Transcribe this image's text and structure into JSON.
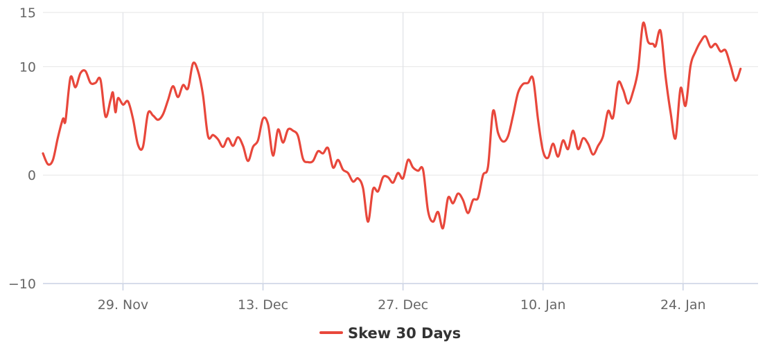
{
  "chart_data": {
    "type": "line",
    "title": "",
    "xlabel": "",
    "ylabel": "",
    "ylim": [
      -10,
      15
    ],
    "y_ticks": [
      15,
      10,
      0,
      -10
    ],
    "y_tick_labels": [
      "15",
      "10",
      "0",
      "−10"
    ],
    "x_ticks": [
      {
        "date": "2023-11-29",
        "label": "29. Nov"
      },
      {
        "date": "2023-12-13",
        "label": "13. Dec"
      },
      {
        "date": "2023-12-27",
        "label": "27. Dec"
      },
      {
        "date": "2024-01-10",
        "label": "10. Jan"
      },
      {
        "date": "2024-01-24",
        "label": "24. Jan"
      }
    ],
    "xlim": [
      "2023-11-21",
      "2024-01-31T12:00"
    ],
    "grid": {
      "x": true,
      "y": true
    },
    "legend": {
      "position": "bottom-center"
    },
    "series": [
      {
        "name": "Skew 30 Days",
        "color": "#e8473b",
        "points": [
          [
            "2023-11-21T00:00",
            2.0
          ],
          [
            "2023-11-21T12:00",
            1.0
          ],
          [
            "2023-11-22T00:00",
            1.4
          ],
          [
            "2023-11-22T12:00",
            3.5
          ],
          [
            "2023-11-23T00:00",
            5.2
          ],
          [
            "2023-11-23T06:00",
            5.0
          ],
          [
            "2023-11-23T18:00",
            9.0
          ],
          [
            "2023-11-24T06:00",
            8.1
          ],
          [
            "2023-11-24T18:00",
            9.4
          ],
          [
            "2023-11-25T06:00",
            9.6
          ],
          [
            "2023-11-25T18:00",
            8.5
          ],
          [
            "2023-11-26T06:00",
            8.5
          ],
          [
            "2023-11-26T18:00",
            8.8
          ],
          [
            "2023-11-27T06:00",
            5.4
          ],
          [
            "2023-11-27T18:00",
            6.9
          ],
          [
            "2023-11-28T00:00",
            7.6
          ],
          [
            "2023-11-28T06:00",
            5.8
          ],
          [
            "2023-11-28T12:00",
            7.1
          ],
          [
            "2023-11-29T00:00",
            6.5
          ],
          [
            "2023-11-29T12:00",
            6.8
          ],
          [
            "2023-11-30T00:00",
            5.2
          ],
          [
            "2023-11-30T12:00",
            2.8
          ],
          [
            "2023-12-01T00:00",
            2.6
          ],
          [
            "2023-12-01T12:00",
            5.7
          ],
          [
            "2023-12-02T00:00",
            5.5
          ],
          [
            "2023-12-02T12:00",
            5.1
          ],
          [
            "2023-12-03T00:00",
            5.6
          ],
          [
            "2023-12-03T12:00",
            6.9
          ],
          [
            "2023-12-04T00:00",
            8.2
          ],
          [
            "2023-12-04T12:00",
            7.2
          ],
          [
            "2023-12-05T00:00",
            8.3
          ],
          [
            "2023-12-05T12:00",
            8.0
          ],
          [
            "2023-12-06T00:00",
            10.3
          ],
          [
            "2023-12-06T12:00",
            9.6
          ],
          [
            "2023-12-07T00:00",
            7.4
          ],
          [
            "2023-12-07T12:00",
            3.6
          ],
          [
            "2023-12-08T00:00",
            3.7
          ],
          [
            "2023-12-08T12:00",
            3.3
          ],
          [
            "2023-12-09T00:00",
            2.6
          ],
          [
            "2023-12-09T12:00",
            3.4
          ],
          [
            "2023-12-10T00:00",
            2.7
          ],
          [
            "2023-12-10T12:00",
            3.5
          ],
          [
            "2023-12-11T00:00",
            2.7
          ],
          [
            "2023-12-11T12:00",
            1.3
          ],
          [
            "2023-12-12T00:00",
            2.6
          ],
          [
            "2023-12-12T12:00",
            3.2
          ],
          [
            "2023-12-13T00:00",
            5.2
          ],
          [
            "2023-12-13T12:00",
            4.7
          ],
          [
            "2023-12-14T00:00",
            1.8
          ],
          [
            "2023-12-14T12:00",
            4.2
          ],
          [
            "2023-12-15T00:00",
            3.0
          ],
          [
            "2023-12-15T12:00",
            4.2
          ],
          [
            "2023-12-16T00:00",
            4.1
          ],
          [
            "2023-12-16T12:00",
            3.6
          ],
          [
            "2023-12-17T00:00",
            1.5
          ],
          [
            "2023-12-17T12:00",
            1.2
          ],
          [
            "2023-12-18T00:00",
            1.3
          ],
          [
            "2023-12-18T12:00",
            2.2
          ],
          [
            "2023-12-19T00:00",
            2.0
          ],
          [
            "2023-12-19T12:00",
            2.5
          ],
          [
            "2023-12-20T00:00",
            0.7
          ],
          [
            "2023-12-20T12:00",
            1.4
          ],
          [
            "2023-12-21T00:00",
            0.5
          ],
          [
            "2023-12-21T12:00",
            0.2
          ],
          [
            "2023-12-22T00:00",
            -0.6
          ],
          [
            "2023-12-22T12:00",
            -0.3
          ],
          [
            "2023-12-23T00:00",
            -1.2
          ],
          [
            "2023-12-23T12:00",
            -4.3
          ],
          [
            "2023-12-24T00:00",
            -1.3
          ],
          [
            "2023-12-24T12:00",
            -1.5
          ],
          [
            "2023-12-25T00:00",
            -0.2
          ],
          [
            "2023-12-25T12:00",
            -0.2
          ],
          [
            "2023-12-26T00:00",
            -0.7
          ],
          [
            "2023-12-26T12:00",
            0.2
          ],
          [
            "2023-12-27T00:00",
            -0.3
          ],
          [
            "2023-12-27T12:00",
            1.4
          ],
          [
            "2023-12-28T00:00",
            0.7
          ],
          [
            "2023-12-28T12:00",
            0.4
          ],
          [
            "2023-12-29T00:00",
            0.5
          ],
          [
            "2023-12-29T12:00",
            -3.3
          ],
          [
            "2023-12-30T00:00",
            -4.3
          ],
          [
            "2023-12-30T12:00",
            -3.4
          ],
          [
            "2023-12-31T00:00",
            -4.9
          ],
          [
            "2023-12-31T12:00",
            -2.1
          ],
          [
            "2024-01-01T00:00",
            -2.6
          ],
          [
            "2024-01-01T12:00",
            -1.7
          ],
          [
            "2024-01-02T00:00",
            -2.3
          ],
          [
            "2024-01-02T12:00",
            -3.5
          ],
          [
            "2024-01-03T00:00",
            -2.3
          ],
          [
            "2024-01-03T12:00",
            -2.1
          ],
          [
            "2024-01-04T00:00",
            0.0
          ],
          [
            "2024-01-04T12:00",
            0.8
          ],
          [
            "2024-01-05T00:00",
            5.9
          ],
          [
            "2024-01-05T12:00",
            3.9
          ],
          [
            "2024-01-06T00:00",
            3.1
          ],
          [
            "2024-01-06T12:00",
            3.6
          ],
          [
            "2024-01-07T00:00",
            5.5
          ],
          [
            "2024-01-07T12:00",
            7.6
          ],
          [
            "2024-01-08T00:00",
            8.4
          ],
          [
            "2024-01-08T12:00",
            8.5
          ],
          [
            "2024-01-09T00:00",
            8.9
          ],
          [
            "2024-01-09T12:00",
            5.1
          ],
          [
            "2024-01-10T00:00",
            2.2
          ],
          [
            "2024-01-10T12:00",
            1.6
          ],
          [
            "2024-01-11T00:00",
            2.9
          ],
          [
            "2024-01-11T12:00",
            1.7
          ],
          [
            "2024-01-12T00:00",
            3.2
          ],
          [
            "2024-01-12T12:00",
            2.4
          ],
          [
            "2024-01-13T00:00",
            4.1
          ],
          [
            "2024-01-13T12:00",
            2.4
          ],
          [
            "2024-01-14T00:00",
            3.4
          ],
          [
            "2024-01-14T12:00",
            2.9
          ],
          [
            "2024-01-15T00:00",
            1.9
          ],
          [
            "2024-01-15T12:00",
            2.7
          ],
          [
            "2024-01-16T00:00",
            3.6
          ],
          [
            "2024-01-16T12:00",
            5.9
          ],
          [
            "2024-01-17T00:00",
            5.3
          ],
          [
            "2024-01-17T12:00",
            8.5
          ],
          [
            "2024-01-18T00:00",
            7.9
          ],
          [
            "2024-01-18T12:00",
            6.6
          ],
          [
            "2024-01-19T00:00",
            7.7
          ],
          [
            "2024-01-19T12:00",
            9.7
          ],
          [
            "2024-01-20T00:00",
            14.0
          ],
          [
            "2024-01-20T12:00",
            12.3
          ],
          [
            "2024-01-21T00:00",
            12.1
          ],
          [
            "2024-01-21T06:00",
            11.9
          ],
          [
            "2024-01-21T18:00",
            13.3
          ],
          [
            "2024-01-22T06:00",
            9.1
          ],
          [
            "2024-01-22T18:00",
            5.8
          ],
          [
            "2024-01-23T06:00",
            3.4
          ],
          [
            "2024-01-23T18:00",
            8.0
          ],
          [
            "2024-01-24T06:00",
            6.4
          ],
          [
            "2024-01-24T18:00",
            10.1
          ],
          [
            "2024-01-25T06:00",
            11.4
          ],
          [
            "2024-01-25T18:00",
            12.3
          ],
          [
            "2024-01-26T06:00",
            12.8
          ],
          [
            "2024-01-26T18:00",
            11.8
          ],
          [
            "2024-01-27T06:00",
            12.1
          ],
          [
            "2024-01-27T18:00",
            11.4
          ],
          [
            "2024-01-28T06:00",
            11.5
          ],
          [
            "2024-01-28T18:00",
            10.1
          ],
          [
            "2024-01-29T06:00",
            8.7
          ],
          [
            "2024-01-29T18:00",
            9.8
          ]
        ]
      }
    ]
  }
}
